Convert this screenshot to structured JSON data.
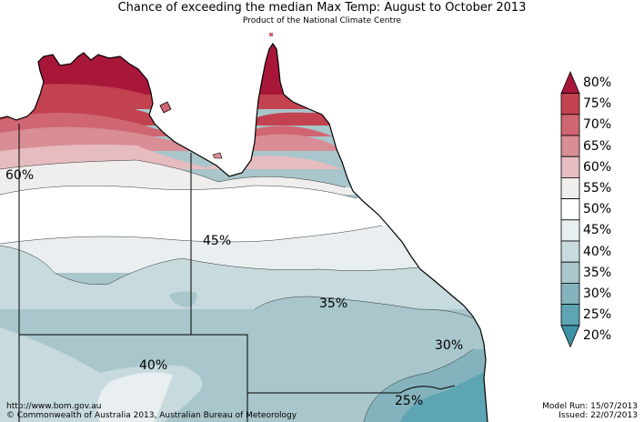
{
  "header": {
    "title": "Chance of exceeding the median Max Temp: August to October 2013",
    "subtitle": "Product of the National Climate Centre"
  },
  "map_labels": {
    "p60": "60%",
    "p45": "45%",
    "p35": "35%",
    "p40": "40%",
    "p30": "30%",
    "p25": "25%"
  },
  "legend": {
    "labels": [
      "80%",
      "75%",
      "70%",
      "65%",
      "60%",
      "55%",
      "50%",
      "45%",
      "40%",
      "35%",
      "30%",
      "25%",
      "20%"
    ],
    "colors": [
      "#a8173a",
      "#c2434f",
      "#cf6672",
      "#d98d95",
      "#e6bcc0",
      "#efeeed",
      "#ffffff",
      "#e9eef0",
      "#c7dadd",
      "#a8c6cb",
      "#84b3bd",
      "#5da5b3",
      "#3f93a6"
    ]
  },
  "footer": {
    "url": "http://www.bom.gov.au",
    "copyright": "©  Commonwealth of Australia 2013, Australian Bureau of Meteorology",
    "model_run": "Model Run: 15/07/2013",
    "issued": "Issued: 22/07/2013"
  }
}
